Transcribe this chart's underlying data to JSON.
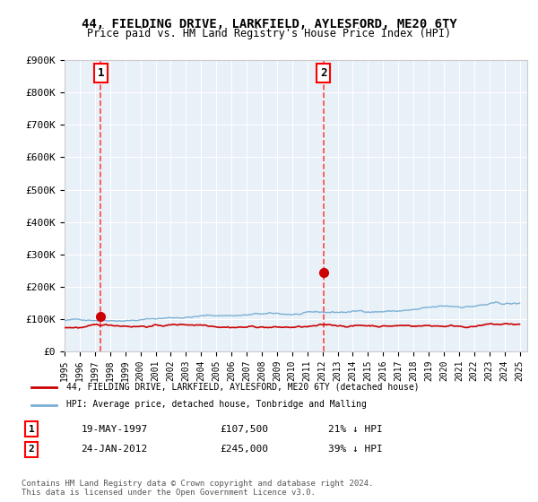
{
  "title": "44, FIELDING DRIVE, LARKFIELD, AYLESFORD, ME20 6TY",
  "subtitle": "Price paid vs. HM Land Registry's House Price Index (HPI)",
  "ylabel": "",
  "background_color": "#e8f0f8",
  "plot_bg": "#e8f0f8",
  "hpi_color": "#7ab0d4",
  "price_color": "#cc0000",
  "dashed_color": "#ff4444",
  "marker_color": "#cc0000",
  "sale1_x": 1997.38,
  "sale1_y": 107500,
  "sale1_label": "1",
  "sale2_x": 2012.07,
  "sale2_y": 245000,
  "sale2_label": "2",
  "ylim_min": 0,
  "ylim_max": 900000,
  "xlim_min": 1995,
  "xlim_max": 2025.5,
  "legend_line1": "44, FIELDING DRIVE, LARKFIELD, AYLESFORD, ME20 6TY (detached house)",
  "legend_line2": "HPI: Average price, detached house, Tonbridge and Malling",
  "table_row1_num": "1",
  "table_row1_date": "19-MAY-1997",
  "table_row1_price": "£107,500",
  "table_row1_hpi": "21% ↓ HPI",
  "table_row2_num": "2",
  "table_row2_date": "24-JAN-2012",
  "table_row2_price": "£245,000",
  "table_row2_hpi": "39% ↓ HPI",
  "footer": "Contains HM Land Registry data © Crown copyright and database right 2024.\nThis data is licensed under the Open Government Licence v3.0.",
  "yticks": [
    0,
    100000,
    200000,
    300000,
    400000,
    500000,
    600000,
    700000,
    800000,
    900000
  ],
  "ytick_labels": [
    "£0",
    "£100K",
    "£200K",
    "£300K",
    "£400K",
    "£500K",
    "£600K",
    "£700K",
    "£800K",
    "£900K"
  ]
}
